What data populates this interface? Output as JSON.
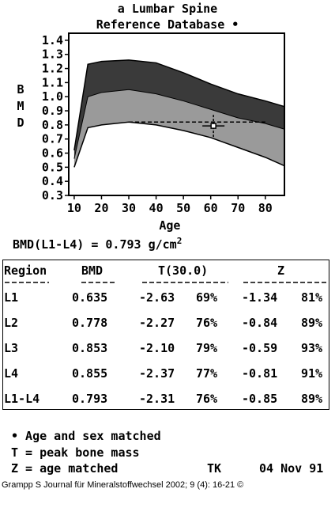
{
  "header": {
    "title_line1": "a Lumbar Spine",
    "title_line2": "Reference Database •"
  },
  "chart_data": {
    "type": "area",
    "title": "a Lumbar Spine Reference Database",
    "xlabel": "Age",
    "ylabel": "BMD",
    "xlim": [
      8,
      87
    ],
    "ylim": [
      0.3,
      1.45
    ],
    "x_ticks": [
      "10",
      "20",
      "30",
      "40",
      "50",
      "60",
      "70",
      "80"
    ],
    "y_ticks": [
      "1.4",
      "1.3",
      "1.2",
      "1.1",
      "1.0",
      "0.9",
      "0.8",
      "0.7",
      "0.6",
      "0.5",
      "0.4",
      "0.3"
    ],
    "ylabel_letters": [
      "B",
      "M",
      "D"
    ],
    "colors": {
      "outer_band": "#3a3a3a",
      "inner_band": "#9a9a9a",
      "background": "#ffffff"
    },
    "series": [
      {
        "name": "upper",
        "x": [
          10,
          15,
          20,
          30,
          40,
          50,
          60,
          70,
          80,
          87
        ],
        "values": [
          0.62,
          1.23,
          1.25,
          1.26,
          1.24,
          1.17,
          1.09,
          1.02,
          0.97,
          0.93
        ]
      },
      {
        "name": "mean_plus_1sd",
        "x": [
          10,
          15,
          20,
          30,
          40,
          50,
          60,
          70,
          80,
          87
        ],
        "values": [
          0.56,
          1.0,
          1.03,
          1.05,
          1.02,
          0.97,
          0.91,
          0.85,
          0.81,
          0.77
        ]
      },
      {
        "name": "mean_minus_1sd",
        "x": [
          10,
          15,
          20,
          30,
          40,
          50,
          60,
          70,
          80,
          87
        ],
        "values": [
          0.5,
          0.78,
          0.8,
          0.82,
          0.8,
          0.76,
          0.71,
          0.64,
          0.57,
          0.51
        ]
      }
    ],
    "reference_line": {
      "x": [
        30,
        80
      ],
      "y": 0.82
    },
    "patient_point": {
      "x": 61,
      "y": 0.793
    }
  },
  "bmd_summary": {
    "prefix": "BMD(L1-L4) = 0.793 g/cm",
    "exponent": "2"
  },
  "table": {
    "headers": {
      "region": "Region",
      "bmd": "BMD",
      "t": "T(30.0)",
      "z": "Z"
    },
    "rows": [
      {
        "region": "L1",
        "bmd": "0.635",
        "t": "-2.63",
        "tp": "69%",
        "z": "-1.34",
        "zp": "81%"
      },
      {
        "region": "L2",
        "bmd": "0.778",
        "t": "-2.27",
        "tp": "76%",
        "z": "-0.84",
        "zp": "89%"
      },
      {
        "region": "L3",
        "bmd": "0.853",
        "t": "-2.10",
        "tp": "79%",
        "z": "-0.59",
        "zp": "93%"
      },
      {
        "region": "L4",
        "bmd": "0.855",
        "t": "-2.37",
        "tp": "77%",
        "z": "-0.81",
        "zp": "91%"
      },
      {
        "region": "L1-L4",
        "bmd": "0.793",
        "t": "-2.31",
        "tp": "76%",
        "z": "-0.85",
        "zp": "89%"
      }
    ]
  },
  "legend": {
    "line1": "• Age and sex matched",
    "line2": "T = peak bone mass",
    "line3": "Z = age matched",
    "operator": "TK",
    "date": "04 Nov 91"
  },
  "credit": "Grampp S Journal für Mineralstoffwechsel 2002; 9 (4): 16-21 ©"
}
